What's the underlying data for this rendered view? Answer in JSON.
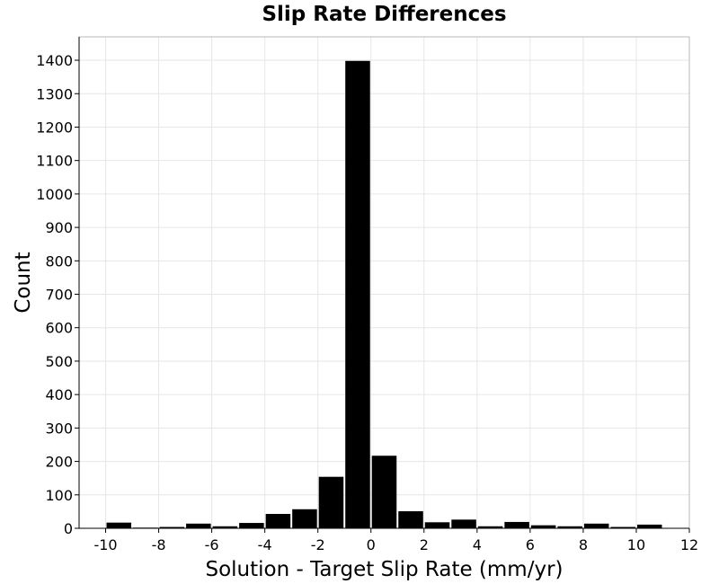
{
  "chart_data": {
    "type": "bar",
    "title": "Slip Rate Differences",
    "xlabel": "Solution - Target Slip Rate (mm/yr)",
    "ylabel": "Count",
    "xlim": [
      -11,
      12
    ],
    "ylim": [
      0,
      1470
    ],
    "x_ticks": [
      -10,
      -8,
      -6,
      -4,
      -2,
      0,
      2,
      4,
      6,
      8,
      10,
      12
    ],
    "y_ticks": [
      0,
      100,
      200,
      300,
      400,
      500,
      600,
      700,
      800,
      900,
      1000,
      1100,
      1200,
      1300,
      1400
    ],
    "bin_width": 1,
    "grid": true,
    "bar_color": "#000000",
    "bins": [
      {
        "x": -9.5,
        "value": 17
      },
      {
        "x": -8.5,
        "value": 1
      },
      {
        "x": -7.5,
        "value": 4
      },
      {
        "x": -6.5,
        "value": 14
      },
      {
        "x": -5.5,
        "value": 6
      },
      {
        "x": -4.5,
        "value": 16
      },
      {
        "x": -3.5,
        "value": 43
      },
      {
        "x": -2.5,
        "value": 57
      },
      {
        "x": -1.5,
        "value": 154
      },
      {
        "x": -0.5,
        "value": 1398
      },
      {
        "x": 0.5,
        "value": 217
      },
      {
        "x": 1.5,
        "value": 51
      },
      {
        "x": 2.5,
        "value": 18
      },
      {
        "x": 3.5,
        "value": 26
      },
      {
        "x": 4.5,
        "value": 6
      },
      {
        "x": 5.5,
        "value": 19
      },
      {
        "x": 6.5,
        "value": 9
      },
      {
        "x": 7.5,
        "value": 6
      },
      {
        "x": 8.5,
        "value": 14
      },
      {
        "x": 9.5,
        "value": 4
      },
      {
        "x": 10.5,
        "value": 11
      }
    ]
  }
}
